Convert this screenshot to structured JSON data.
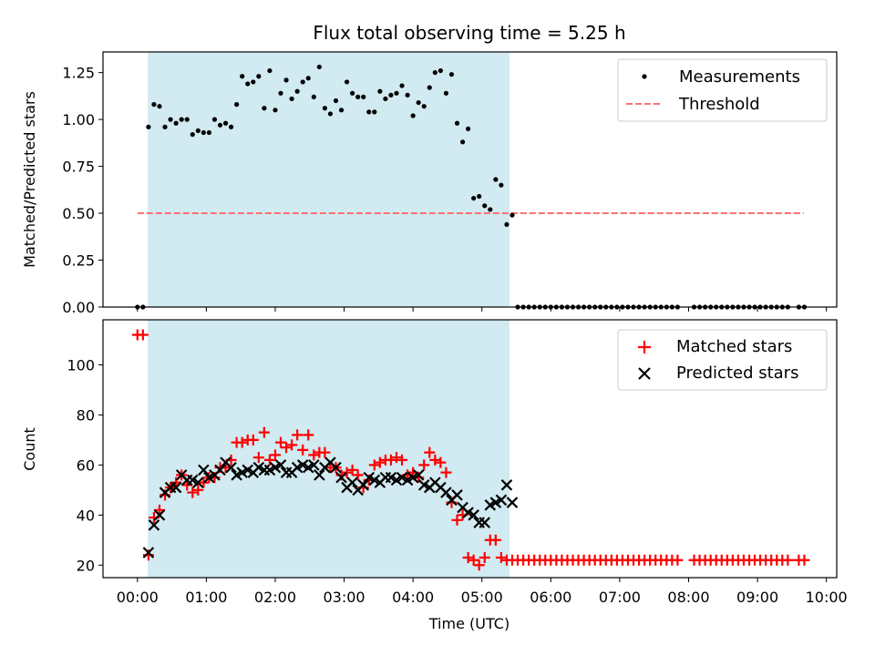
{
  "chart_data": [
    {
      "type": "scatter",
      "title": "Flux total observing time = 5.25 h",
      "xlabel": "",
      "ylabel": "Matched/Predicted stars",
      "xlim": [
        -0.5,
        10.15
      ],
      "ylim": [
        0,
        1.36
      ],
      "yticks": [
        0,
        0.25,
        0.5,
        0.75,
        1.0,
        1.25
      ],
      "ytick_labels": [
        "0.00",
        "0.25",
        "0.50",
        "0.75",
        "1.00",
        "1.25"
      ],
      "shaded_span": {
        "x0": 0.15,
        "x1": 5.4,
        "color": "#add8e6"
      },
      "legend_position": "top-right",
      "legend": [
        {
          "label": "Measurements",
          "marker": "dot",
          "color": "#000000"
        },
        {
          "label": "Threshold",
          "marker": "dashed-line",
          "color": "#ff7070"
        }
      ],
      "threshold": {
        "y": 0.5,
        "x0": 0.0,
        "x1": 9.67,
        "color": "#ff7070"
      },
      "series": [
        {
          "name": "Measurements",
          "color": "#000000",
          "x": [
            0.0,
            0.08,
            0.16,
            0.24,
            0.32,
            0.4,
            0.48,
            0.56,
            0.64,
            0.72,
            0.8,
            0.88,
            0.96,
            1.04,
            1.12,
            1.2,
            1.28,
            1.36,
            1.44,
            1.52,
            1.6,
            1.68,
            1.76,
            1.84,
            1.92,
            2.0,
            2.08,
            2.16,
            2.24,
            2.32,
            2.4,
            2.48,
            2.56,
            2.64,
            2.72,
            2.8,
            2.88,
            2.96,
            3.04,
            3.12,
            3.2,
            3.28,
            3.36,
            3.44,
            3.52,
            3.6,
            3.68,
            3.76,
            3.84,
            3.92,
            4.0,
            4.08,
            4.16,
            4.24,
            4.32,
            4.4,
            4.48,
            4.56,
            4.64,
            4.72,
            4.8,
            4.88,
            4.96,
            5.04,
            5.12,
            5.2,
            5.28,
            5.36,
            5.44,
            5.52,
            5.6,
            5.68,
            5.76,
            5.84,
            5.92,
            6.0,
            6.08,
            6.16,
            6.24,
            6.32,
            6.4,
            6.48,
            6.56,
            6.64,
            6.72,
            6.8,
            6.88,
            6.96,
            7.04,
            7.12,
            7.2,
            7.28,
            7.36,
            7.44,
            7.52,
            7.6,
            7.68,
            7.76,
            7.84,
            8.08,
            8.16,
            8.24,
            8.32,
            8.4,
            8.48,
            8.56,
            8.64,
            8.72,
            8.8,
            8.88,
            8.96,
            9.04,
            9.12,
            9.2,
            9.28,
            9.36,
            9.44,
            9.6,
            9.68
          ],
          "y": [
            0,
            0,
            0.96,
            1.08,
            1.07,
            0.96,
            1.0,
            0.98,
            1.0,
            1.0,
            0.92,
            0.94,
            0.93,
            0.93,
            1.0,
            0.97,
            0.98,
            0.96,
            1.08,
            1.23,
            1.19,
            1.2,
            1.23,
            1.06,
            1.26,
            1.05,
            1.14,
            1.21,
            1.11,
            1.15,
            1.2,
            1.22,
            1.12,
            1.28,
            1.06,
            1.03,
            1.1,
            1.05,
            1.2,
            1.14,
            1.12,
            1.12,
            1.04,
            1.04,
            1.15,
            1.11,
            1.13,
            1.14,
            1.18,
            1.13,
            1.02,
            1.09,
            1.07,
            1.17,
            1.25,
            1.26,
            1.14,
            1.24,
            0.98,
            0.88,
            0.95,
            0.58,
            0.59,
            0.54,
            0.52,
            0.68,
            0.65,
            0.44,
            0.49,
            0,
            0,
            0,
            0,
            0,
            0,
            0,
            0,
            0,
            0,
            0,
            0,
            0,
            0,
            0,
            0,
            0,
            0,
            0,
            0,
            0,
            0,
            0,
            0,
            0,
            0,
            0,
            0,
            0,
            0,
            0,
            0,
            0,
            0,
            0,
            0,
            0,
            0,
            0,
            0,
            0,
            0,
            0,
            0,
            0,
            0,
            0,
            0,
            0,
            0
          ]
        }
      ]
    },
    {
      "type": "scatter",
      "title": "",
      "xlabel": "Time (UTC)",
      "ylabel": "Count",
      "xlim": [
        -0.5,
        10.15
      ],
      "ylim": [
        15,
        118
      ],
      "yticks": [
        20,
        40,
        60,
        80,
        100
      ],
      "ytick_labels": [
        "20",
        "40",
        "60",
        "80",
        "100"
      ],
      "xticks": [
        0,
        1,
        2,
        3,
        4,
        5,
        6,
        7,
        8,
        9,
        10
      ],
      "xtick_labels": [
        "00:00",
        "01:00",
        "02:00",
        "03:00",
        "04:00",
        "05:00",
        "06:00",
        "07:00",
        "08:00",
        "09:00",
        "10:00"
      ],
      "shaded_span": {
        "x0": 0.15,
        "x1": 5.4,
        "color": "#add8e6"
      },
      "legend_position": "top-right",
      "legend": [
        {
          "label": "Matched stars",
          "marker": "plus",
          "color": "#ff0000"
        },
        {
          "label": "Predicted stars",
          "marker": "x",
          "color": "#000000"
        }
      ],
      "series": [
        {
          "name": "Matched stars",
          "marker": "plus",
          "color": "#ff0000",
          "x": [
            0.0,
            0.08,
            0.16,
            0.24,
            0.32,
            0.4,
            0.48,
            0.56,
            0.64,
            0.72,
            0.8,
            0.88,
            0.96,
            1.04,
            1.12,
            1.2,
            1.28,
            1.36,
            1.44,
            1.52,
            1.6,
            1.68,
            1.76,
            1.84,
            1.92,
            2.0,
            2.08,
            2.16,
            2.24,
            2.32,
            2.4,
            2.48,
            2.56,
            2.64,
            2.72,
            2.8,
            2.88,
            2.96,
            3.04,
            3.12,
            3.2,
            3.28,
            3.36,
            3.44,
            3.52,
            3.6,
            3.68,
            3.76,
            3.84,
            3.92,
            4.0,
            4.08,
            4.16,
            4.24,
            4.32,
            4.4,
            4.48,
            4.56,
            4.64,
            4.72,
            4.8,
            4.88,
            4.96,
            5.04,
            5.12,
            5.2,
            5.28,
            5.36,
            5.44,
            5.52,
            5.6,
            5.68,
            5.76,
            5.84,
            5.92,
            6.0,
            6.08,
            6.16,
            6.24,
            6.32,
            6.4,
            6.48,
            6.56,
            6.64,
            6.72,
            6.8,
            6.88,
            6.96,
            7.04,
            7.12,
            7.2,
            7.28,
            7.36,
            7.44,
            7.52,
            7.6,
            7.68,
            7.76,
            7.84,
            8.08,
            8.16,
            8.24,
            8.32,
            8.4,
            8.48,
            8.56,
            8.64,
            8.72,
            8.8,
            8.88,
            8.96,
            9.04,
            9.12,
            9.2,
            9.28,
            9.36,
            9.44,
            9.6,
            9.68
          ],
          "y": [
            112,
            112,
            24,
            39,
            42,
            48,
            51,
            53,
            56,
            52,
            49,
            50,
            53,
            55,
            55,
            59,
            59,
            62,
            69,
            69,
            70,
            70,
            63,
            73,
            62,
            64,
            69,
            67,
            68,
            72,
            66,
            72,
            64,
            65,
            65,
            59,
            59,
            56,
            57,
            58,
            56,
            51,
            54,
            60,
            61,
            62,
            62,
            63,
            62,
            56,
            57,
            55,
            60,
            65,
            62,
            61,
            57,
            45,
            38,
            40,
            23,
            22,
            20,
            23,
            30,
            30,
            23,
            22,
            22,
            22,
            22,
            22,
            22,
            22,
            22,
            22,
            22,
            22,
            22,
            22,
            22,
            22,
            22,
            22,
            22,
            22,
            22,
            22,
            22,
            22,
            22,
            22,
            22,
            22,
            22,
            22,
            22,
            22,
            22,
            22,
            22,
            22,
            22,
            22,
            22,
            22,
            22,
            22,
            22,
            22,
            22,
            22,
            22,
            22,
            22,
            22,
            22,
            22,
            22
          ]
        },
        {
          "name": "Predicted stars",
          "marker": "x",
          "color": "#000000",
          "x": [
            0.16,
            0.24,
            0.32,
            0.4,
            0.48,
            0.56,
            0.64,
            0.72,
            0.8,
            0.88,
            0.96,
            1.04,
            1.12,
            1.2,
            1.28,
            1.36,
            1.44,
            1.52,
            1.6,
            1.68,
            1.76,
            1.84,
            1.92,
            2.0,
            2.08,
            2.16,
            2.24,
            2.32,
            2.4,
            2.48,
            2.56,
            2.64,
            2.72,
            2.8,
            2.88,
            2.96,
            3.04,
            3.12,
            3.2,
            3.28,
            3.36,
            3.44,
            3.52,
            3.6,
            3.68,
            3.76,
            3.84,
            3.92,
            4.0,
            4.08,
            4.16,
            4.24,
            4.32,
            4.4,
            4.48,
            4.56,
            4.64,
            4.72,
            4.8,
            4.88,
            4.96,
            5.04,
            5.12,
            5.2,
            5.28,
            5.36,
            5.44
          ],
          "y": [
            25,
            36,
            40,
            49,
            51,
            51,
            56,
            54,
            54,
            53,
            58,
            55,
            56,
            58,
            61,
            59,
            56,
            57,
            58,
            57,
            59,
            58,
            58,
            59,
            60,
            57,
            57,
            59,
            60,
            59,
            60,
            56,
            59,
            61,
            59,
            55,
            51,
            53,
            50,
            52,
            55,
            54,
            53,
            55,
            55,
            54,
            55,
            54,
            55,
            56,
            52,
            51,
            53,
            51,
            49,
            46,
            48,
            43,
            41,
            40,
            37,
            37,
            44,
            45,
            46,
            52,
            45
          ]
        }
      ]
    }
  ]
}
